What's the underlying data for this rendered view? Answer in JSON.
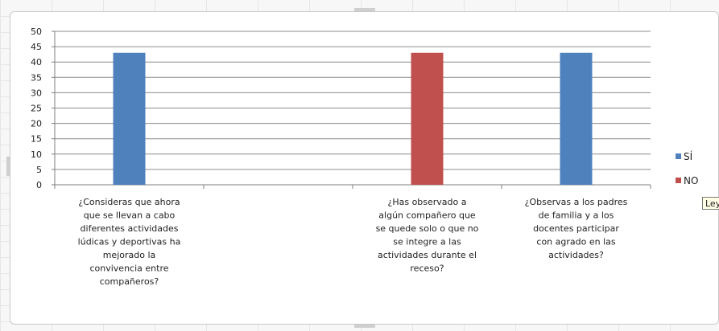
{
  "chart_data": {
    "type": "bar",
    "title": "",
    "xlabel": "",
    "ylabel": "",
    "ylim": [
      0,
      50
    ],
    "yticks": [
      0,
      5,
      10,
      15,
      20,
      25,
      30,
      35,
      40,
      45,
      50
    ],
    "grid": true,
    "legend_position": "right",
    "categories": [
      "¿Consideras que ahora que se llevan a cabo diferentes actividades lúdicas y deportivas ha mejorado la convivencia entre compañeros?",
      "",
      "¿Has observado a algún compañero que se quede solo o que no se integre a las actividades durante el receso?",
      "¿Observas a los padres de familia y a los docentes participar con agrado en las actividades?"
    ],
    "category_lines": [
      [
        "¿Consideras que ahora",
        "que se llevan a cabo",
        "diferentes actividades",
        "lúdicas y deportivas ha",
        "mejorado la",
        "convivencia entre",
        "compañeros?"
      ],
      [],
      [
        "¿Has observado a",
        "algún compañero que",
        "se quede solo o que no",
        "se integre a las",
        "actividades durante el",
        "receso?"
      ],
      [
        "¿Observas a los padres",
        "de familia y a los",
        "docentes participar",
        "con agrado en las",
        "actividades?"
      ]
    ],
    "series": [
      {
        "name": "SÍ",
        "color": "#4f81bd",
        "values": [
          43,
          0,
          0,
          43
        ]
      },
      {
        "name": "NO",
        "color": "#c0504d",
        "values": [
          0,
          0,
          43,
          0
        ]
      }
    ]
  },
  "tooltip_text": "Leyenda"
}
